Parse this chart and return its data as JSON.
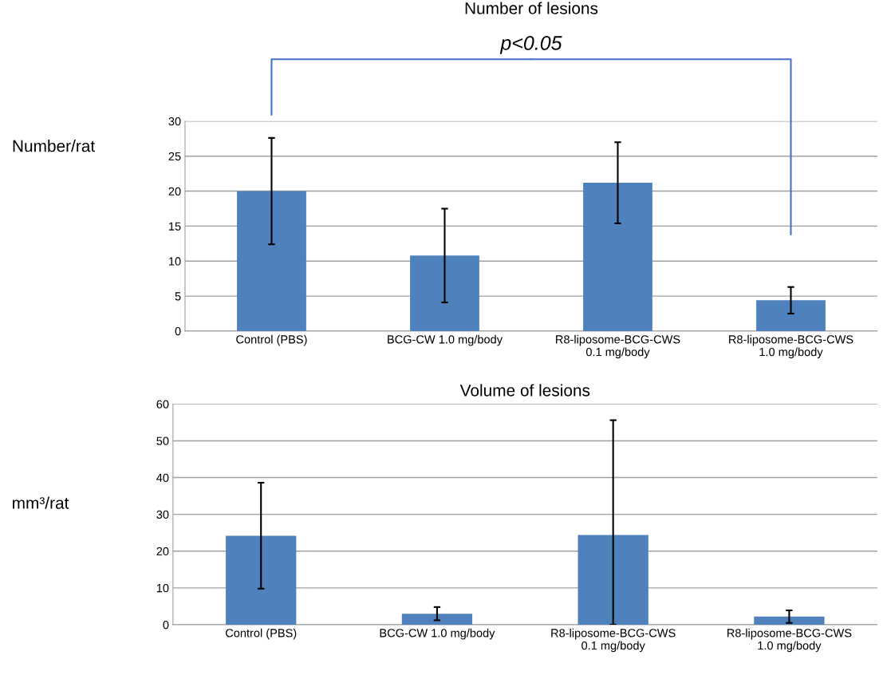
{
  "chart_data": [
    {
      "type": "bar",
      "title": "Number of lesions",
      "ylabel": "Number/rat",
      "annotations": [
        "p<0.05"
      ],
      "categories": [
        "Control (PBS)",
        "BCG-CW 1.0 mg/body",
        "R8-liposome-BCG-CWS\n0.1 mg/body",
        "R8-liposome-BCG-CWS\n1.0 mg/body"
      ],
      "values": [
        20.0,
        10.8,
        21.2,
        4.4
      ],
      "errors": [
        7.6,
        6.7,
        5.8,
        1.9
      ],
      "color": "#4f81bd",
      "ylim": [
        0,
        30
      ],
      "yticks": [
        0,
        5,
        10,
        15,
        20,
        25,
        30
      ],
      "grid": "y"
    },
    {
      "type": "bar",
      "title": "Volume of lesions",
      "ylabel": "mm³/rat",
      "categories": [
        "Control (PBS)",
        "BCG-CW 1.0 mg/body",
        "R8-liposome-BCG-CWS\n0.1 mg/body",
        "R8-liposome-BCG-CWS\n1.0 mg/body"
      ],
      "values": [
        24.2,
        3.0,
        24.4,
        2.2
      ],
      "errors": [
        14.4,
        1.8,
        [
          0,
          55.6
        ],
        1.7
      ],
      "color": "#4f81bd",
      "ylim": [
        0,
        60
      ],
      "yticks": [
        0,
        10,
        20,
        30,
        40,
        50,
        60
      ],
      "grid": "y"
    }
  ]
}
